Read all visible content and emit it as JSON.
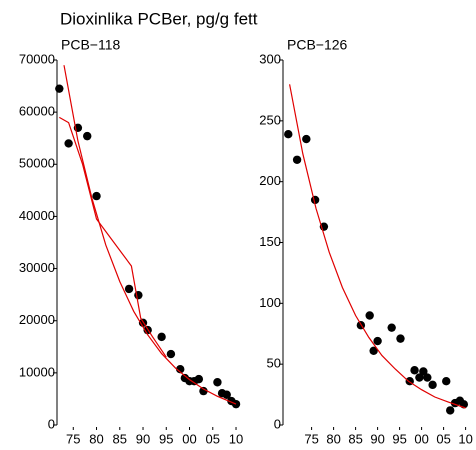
{
  "title": "Dioxinlika PCBer, pg/g fett",
  "chart_data": [
    {
      "type": "scatter",
      "title": "PCB−118",
      "xlim": [
        1971.5,
        2011.5
      ],
      "ylim": [
        0,
        70000
      ],
      "xticks": [
        {
          "value": 1975,
          "label": "75"
        },
        {
          "value": 1980,
          "label": "80"
        },
        {
          "value": 1985,
          "label": "85"
        },
        {
          "value": 1990,
          "label": "90"
        },
        {
          "value": 1995,
          "label": "95"
        },
        {
          "value": 2000,
          "label": "00"
        },
        {
          "value": 2005,
          "label": "05"
        },
        {
          "value": 2010,
          "label": "10"
        }
      ],
      "yticks": [
        0,
        10000,
        20000,
        30000,
        40000,
        50000,
        60000,
        70000
      ],
      "series": [
        {
          "mode": "markers",
          "color": "#000000",
          "x": [
            1972,
            1974,
            1976,
            1978,
            1980,
            1987,
            1989,
            1990,
            1991,
            1994,
            1996,
            1998,
            1999,
            2000,
            2001,
            2002,
            2003,
            2006,
            2007,
            2008,
            2009,
            2010
          ],
          "values": [
            64500,
            54000,
            57000,
            55400,
            43900,
            26100,
            24900,
            19600,
            18200,
            16900,
            13600,
            10700,
            9000,
            8400,
            8400,
            8800,
            6500,
            8200,
            6100,
            5800,
            4600,
            4000
          ]
        },
        {
          "mode": "line",
          "color": "#e00000",
          "x": [
            1973,
            1976,
            1979,
            1982,
            1985,
            1988,
            1991,
            1994,
            1997,
            2000,
            2003,
            2006,
            2010
          ],
          "values": [
            69000,
            54500,
            43500,
            34500,
            27500,
            21800,
            17300,
            13700,
            10900,
            8700,
            6900,
            5500,
            4000
          ]
        },
        {
          "mode": "line",
          "color": "#e00000",
          "x": [
            1972,
            1974,
            1977,
            1980,
            1987.5,
            1989.5,
            1992,
            1995
          ],
          "values": [
            59000,
            58000,
            50000,
            39500,
            30500,
            20500,
            17000,
            13000
          ]
        }
      ]
    },
    {
      "type": "scatter",
      "title": "PCB−126",
      "xlim": [
        1968.5,
        2011
      ],
      "ylim": [
        0,
        300
      ],
      "xticks": [
        {
          "value": 1975,
          "label": "75"
        },
        {
          "value": 1980,
          "label": "80"
        },
        {
          "value": 1985,
          "label": "85"
        },
        {
          "value": 1990,
          "label": "90"
        },
        {
          "value": 1995,
          "label": "95"
        },
        {
          "value": 2000,
          "label": "00"
        },
        {
          "value": 2005,
          "label": "05"
        },
        {
          "value": 2010,
          "label": "10"
        }
      ],
      "yticks": [
        0,
        50,
        100,
        150,
        200,
        250,
        300
      ],
      "series": [
        {
          "mode": "markers",
          "color": "#000000",
          "x": [
            1969.7,
            1971.7,
            1973.8,
            1975.8,
            1977.8,
            1986.2,
            1988.2,
            1989.1,
            1990,
            1993.2,
            1995.2,
            1997.3,
            1998.4,
            1999.5,
            2000.4,
            2001.3,
            2002.5,
            2005.6,
            2006.5,
            2007.6,
            2008.7,
            2009.6
          ],
          "values": [
            239,
            218,
            235,
            185,
            163,
            82,
            90,
            61,
            69,
            80,
            71,
            36,
            45,
            39,
            44,
            39,
            33,
            36,
            12,
            18,
            20,
            17
          ]
        },
        {
          "mode": "line",
          "color": "#e00000",
          "x": [
            1970,
            1973,
            1976,
            1979,
            1982,
            1985,
            1988,
            1991,
            1994,
            1997,
            2000,
            2003,
            2006,
            2010
          ],
          "values": [
            280,
            223,
            178,
            142,
            113,
            90,
            72,
            57,
            46,
            36,
            29,
            23,
            19,
            14
          ]
        }
      ]
    }
  ]
}
